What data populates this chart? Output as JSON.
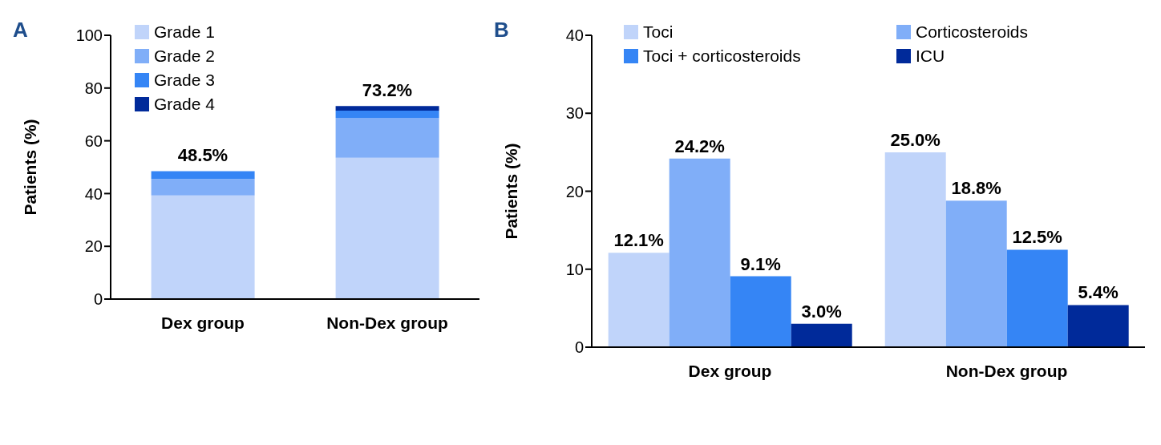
{
  "chart_data": [
    {
      "type": "bar",
      "title": "A",
      "ylabel": "Patients (%)",
      "categories": [
        "Dex group",
        "Non-Dex group"
      ],
      "stacked": true,
      "ylim": [
        0,
        100
      ],
      "yticks": [
        0,
        20,
        40,
        60,
        80,
        100
      ],
      "grid": false,
      "legend": "top left",
      "totals": [
        "48.5%",
        "73.2%"
      ],
      "series": [
        {
          "name": "Grade 1",
          "color": "#c0d4fa",
          "values": [
            39.3,
            53.6
          ]
        },
        {
          "name": "Grade 2",
          "color": "#80aef8",
          "values": [
            6.2,
            15.1
          ]
        },
        {
          "name": "Grade 3",
          "color": "#3585f5",
          "values": [
            3.0,
            2.7
          ]
        },
        {
          "name": "Grade 4",
          "color": "#002a9a",
          "values": [
            null,
            1.8
          ]
        }
      ]
    },
    {
      "type": "bar",
      "title": "B",
      "ylabel": "Patients (%)",
      "categories": [
        "Dex group",
        "Non-Dex group"
      ],
      "ylim": [
        0,
        40
      ],
      "yticks": [
        0,
        10,
        20,
        30,
        40
      ],
      "grid": false,
      "legend": "top",
      "series": [
        {
          "name": "Toci",
          "color": "#c0d4fa",
          "values": [
            12.1,
            25.0
          ],
          "value_labels": [
            "12.1%",
            "25.0%"
          ]
        },
        {
          "name": "Corticosteroids",
          "color": "#80aef8",
          "values": [
            24.2,
            18.8
          ],
          "value_labels": [
            "24.2%",
            "18.8%"
          ]
        },
        {
          "name": "Toci + corticosteroids",
          "color": "#3585f5",
          "values": [
            9.1,
            12.5
          ],
          "value_labels": [
            "9.1%",
            "12.5%"
          ]
        },
        {
          "name": "ICU",
          "color": "#002a9a",
          "values": [
            3.0,
            5.4
          ],
          "value_labels": [
            "3.0%",
            "5.4%"
          ]
        }
      ]
    }
  ]
}
